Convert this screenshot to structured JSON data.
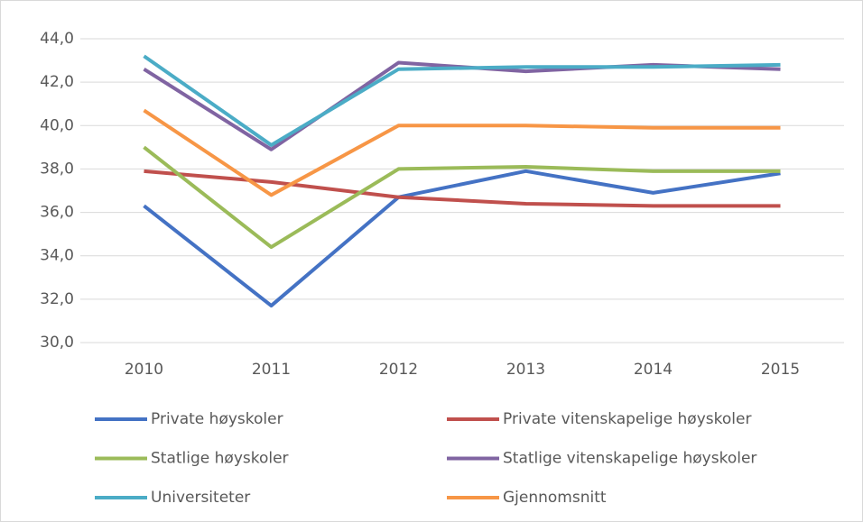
{
  "chart_data": {
    "type": "line",
    "categories": [
      "2010",
      "2011",
      "2012",
      "2013",
      "2014",
      "2015"
    ],
    "series": [
      {
        "name": "Private høyskoler",
        "color": "#4472c4",
        "values": [
          36.3,
          31.7,
          36.7,
          37.9,
          36.9,
          37.8
        ]
      },
      {
        "name": "Private vitenskapelige høyskoler",
        "color": "#c0504d",
        "values": [
          37.9,
          37.4,
          36.7,
          36.4,
          36.3,
          36.3
        ]
      },
      {
        "name": "Statlige høyskoler",
        "color": "#9bbb59",
        "values": [
          39.0,
          34.4,
          38.0,
          38.1,
          37.9,
          37.9
        ]
      },
      {
        "name": "Statlige vitenskapelige høyskoler",
        "color": "#8064a2",
        "values": [
          42.6,
          38.9,
          42.9,
          42.5,
          42.8,
          42.6
        ]
      },
      {
        "name": "Universiteter",
        "color": "#4bacc6",
        "values": [
          43.2,
          39.1,
          42.6,
          42.7,
          42.7,
          42.8
        ]
      },
      {
        "name": "Gjennomsnitt",
        "color": "#f79646",
        "values": [
          40.7,
          36.8,
          40.0,
          40.0,
          39.9,
          39.9
        ]
      }
    ],
    "ylim": [
      30,
      44
    ],
    "yticks": [
      {
        "value": 30,
        "label": "30,0"
      },
      {
        "value": 32,
        "label": "32,0"
      },
      {
        "value": 34,
        "label": "34,0"
      },
      {
        "value": 36,
        "label": "36,0"
      },
      {
        "value": 38,
        "label": "38,0"
      },
      {
        "value": 40,
        "label": "40,0"
      },
      {
        "value": 42,
        "label": "42,0"
      },
      {
        "value": 44,
        "label": "44,0"
      }
    ],
    "grid": true
  }
}
